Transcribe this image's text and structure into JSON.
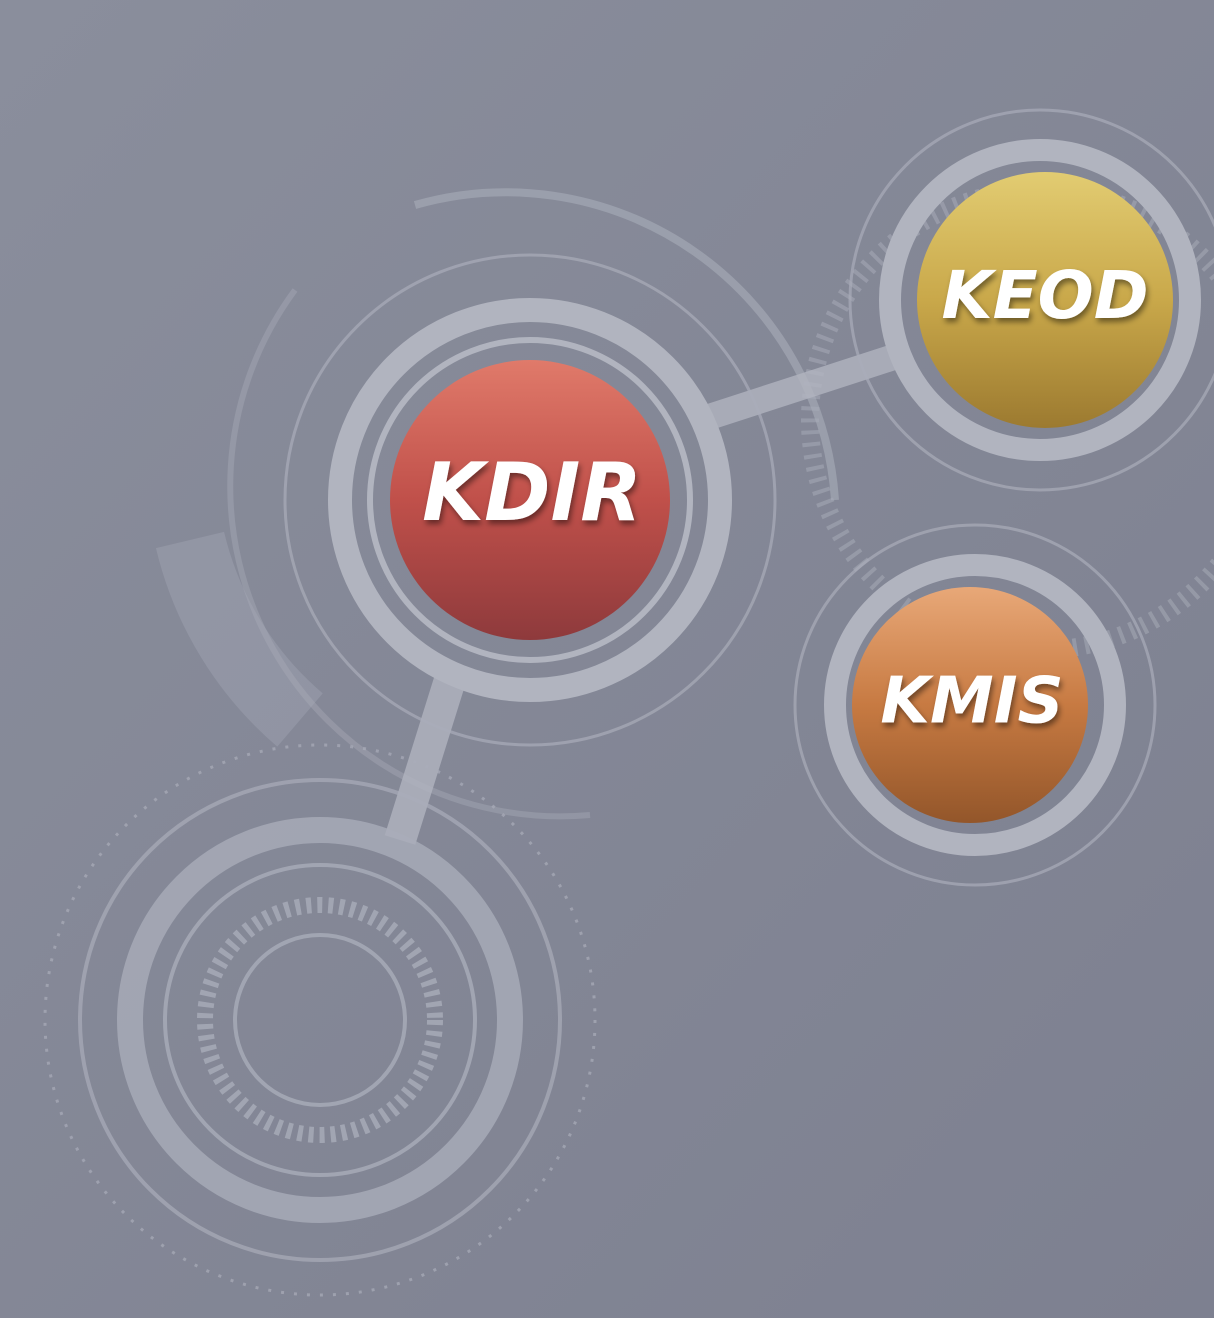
{
  "nodes": [
    {
      "label": "KDIR"
    },
    {
      "label": "KEOD"
    },
    {
      "label": "KMIS"
    }
  ]
}
